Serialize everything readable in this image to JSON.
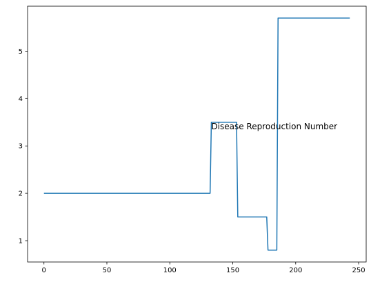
{
  "chart_data": {
    "type": "line",
    "title": "",
    "xlabel": "",
    "ylabel": "",
    "xlim": [
      -13,
      256
    ],
    "ylim": [
      0.55,
      5.95
    ],
    "grid": false,
    "x_ticks": [
      0,
      50,
      100,
      150,
      200,
      250
    ],
    "y_ticks": [
      1,
      2,
      3,
      4,
      5
    ],
    "annotation": {
      "text": "Disease Reproduction Number",
      "x": 183,
      "y": 3.4
    },
    "series": [
      {
        "color": "#1f77b4",
        "x": [
          0,
          132,
          133,
          153,
          154,
          177,
          178,
          185,
          186,
          243
        ],
        "y": [
          2.0,
          2.0,
          3.5,
          3.5,
          1.5,
          1.5,
          0.8,
          0.8,
          5.7,
          5.7
        ]
      }
    ]
  }
}
